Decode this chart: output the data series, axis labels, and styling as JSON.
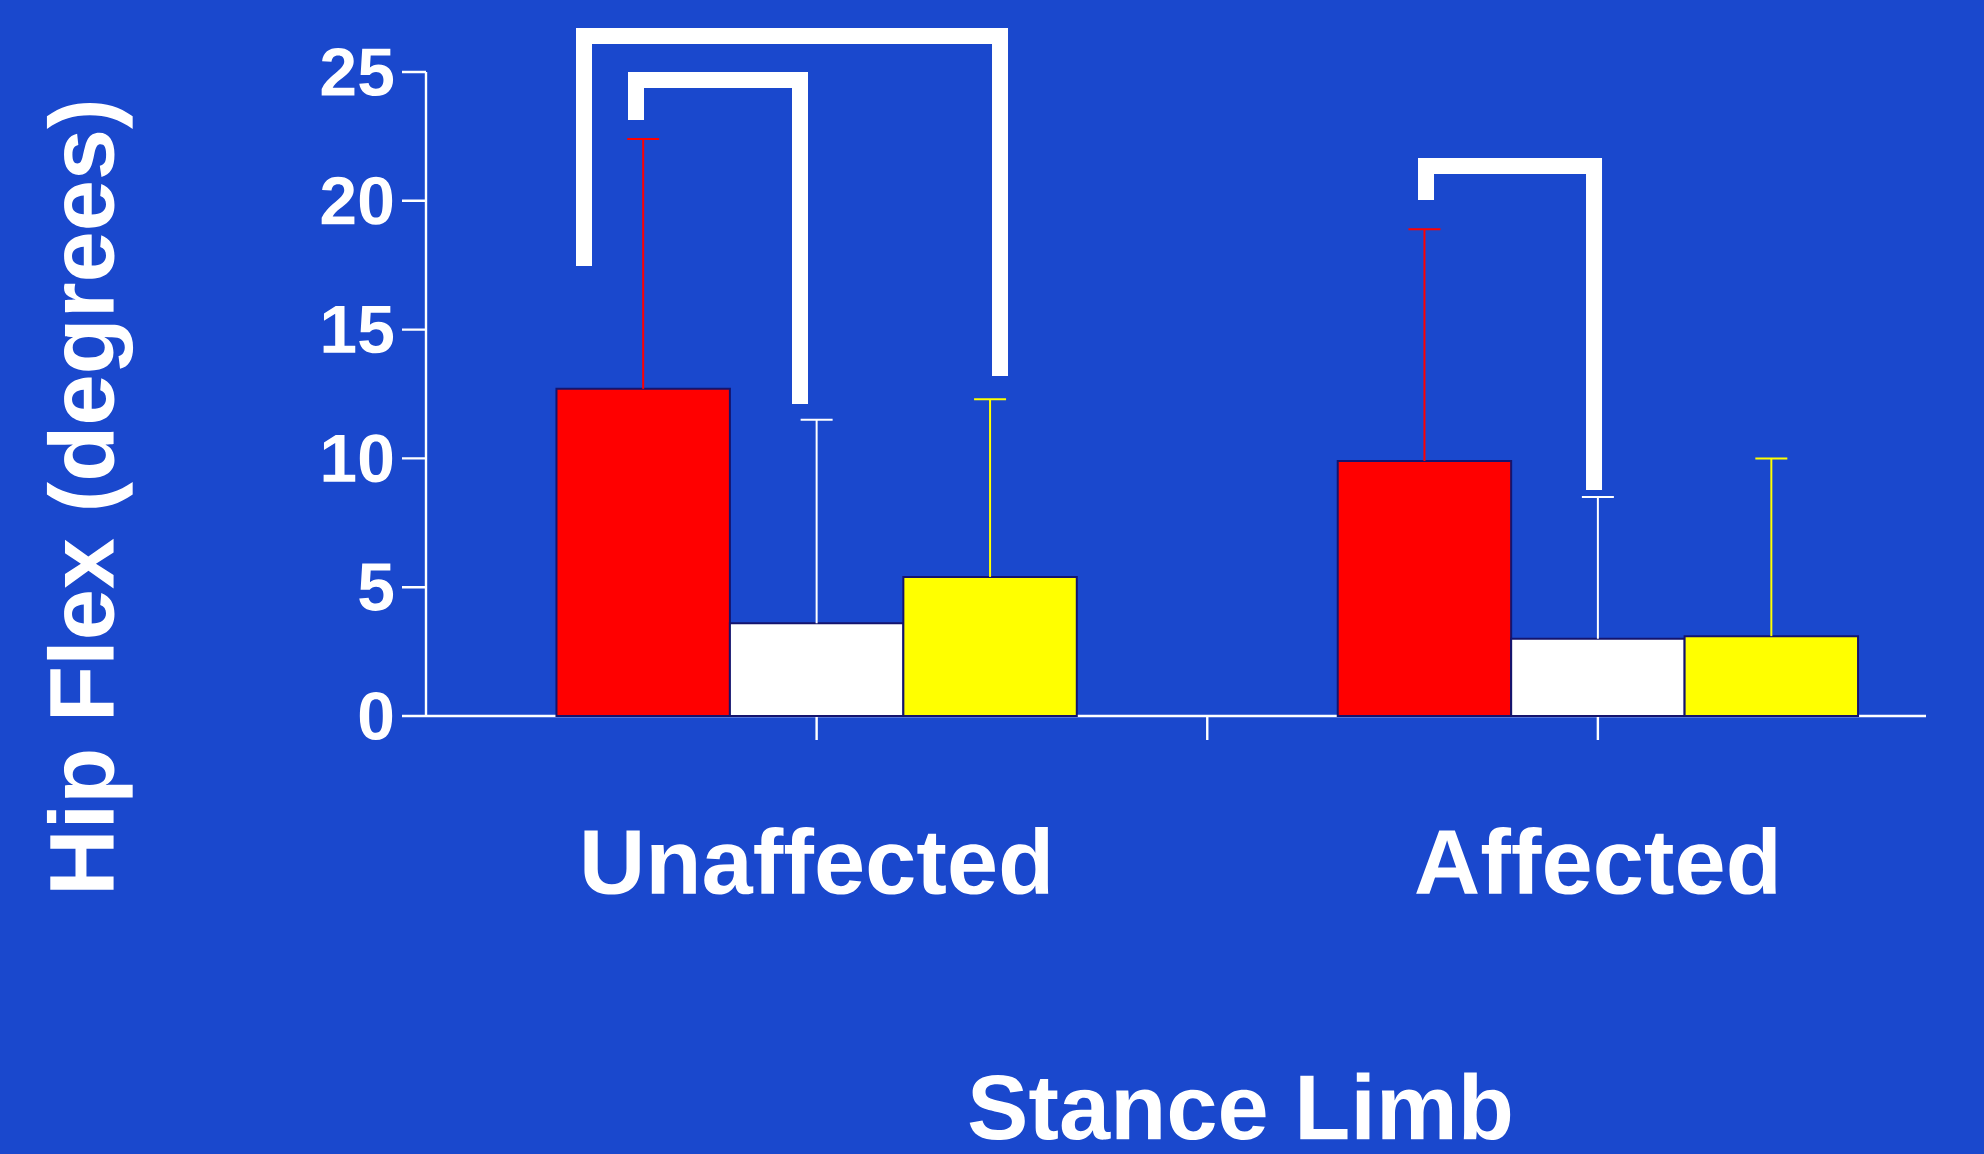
{
  "chart_data": {
    "type": "bar",
    "xlabel": "Stance Limb",
    "ylabel": "Hip Flex (degrees)",
    "categories": [
      "Unaffected",
      "Affected"
    ],
    "ylim": [
      0,
      25
    ],
    "yticks": [
      0,
      5,
      10,
      15,
      20,
      25
    ],
    "grid": false,
    "series": [
      {
        "color": "#ff0000",
        "values": [
          12.7,
          9.9
        ],
        "errors": [
          [
            12.7,
            22.4
          ],
          [
            9.9,
            18.9
          ]
        ]
      },
      {
        "color": "#ffffff",
        "values": [
          3.6,
          3.0
        ],
        "errors": [
          [
            3.6,
            11.5
          ],
          [
            3.0,
            8.5
          ]
        ]
      },
      {
        "color": "#ffff00",
        "values": [
          5.4,
          3.1
        ],
        "errors": [
          [
            5.4,
            12.3
          ],
          [
            3.1,
            10.0
          ]
        ]
      }
    ]
  }
}
